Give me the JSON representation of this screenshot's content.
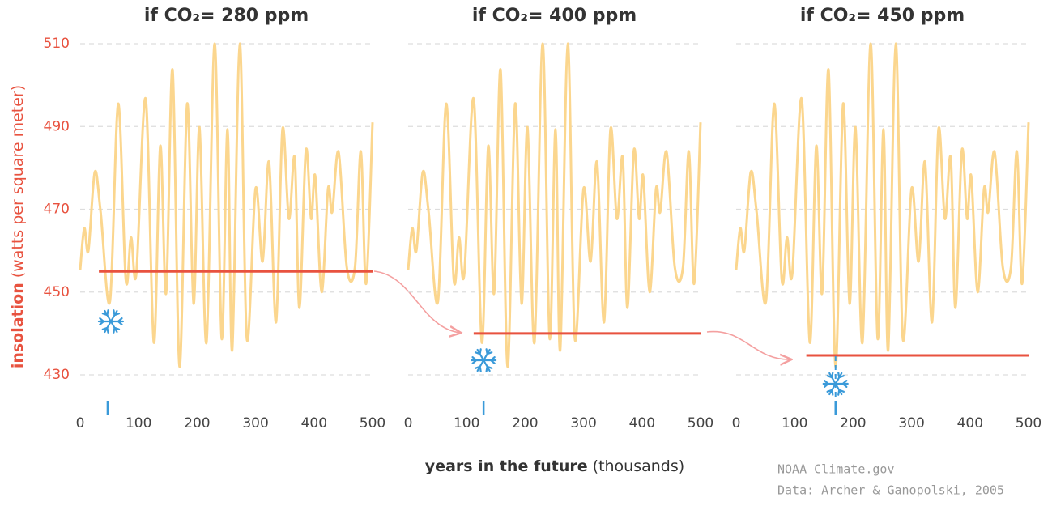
{
  "chart_data": [
    {
      "type": "line",
      "title": "if CO₂= 280 ppm",
      "x": [
        0,
        7,
        14,
        25,
        35,
        51,
        65,
        78,
        87,
        96,
        112,
        126,
        137,
        147,
        158,
        170,
        183,
        194,
        204,
        216,
        230,
        242,
        252,
        260,
        273,
        285,
        300,
        312,
        323,
        335,
        346,
        357,
        367,
        375,
        386,
        395,
        402,
        413,
        424,
        431,
        442,
        456,
        470,
        480,
        489,
        500
      ],
      "values": [
        455.4,
        465.4,
        460,
        479,
        469.3,
        447.8,
        495.5,
        453,
        463.2,
        454.4,
        496.7,
        437.8,
        485.3,
        449.7,
        503.7,
        432,
        495.5,
        447.2,
        489.8,
        437.8,
        510,
        438.8,
        489.3,
        436,
        510,
        438.8,
        475,
        457.4,
        481.4,
        442.7,
        489.3,
        467.7,
        482.4,
        446.2,
        484.2,
        467.7,
        478,
        450,
        475,
        469.3,
        483.8,
        456,
        456,
        484,
        452,
        491
      ],
      "color": "#fbd68e",
      "threshold": {
        "x": [
          32,
          500
        ],
        "values": [
          455,
          455
        ],
        "color": "#e8523f"
      },
      "glaciation_x": 47,
      "xlim": [
        0,
        500
      ],
      "xticks": [
        0,
        100,
        200,
        300,
        400,
        500
      ],
      "ylim": [
        430,
        510
      ],
      "yticks": [
        430,
        450,
        470,
        490,
        510
      ],
      "grid": true
    },
    {
      "type": "line",
      "title": "if CO₂= 400 ppm",
      "x": [
        0,
        7,
        14,
        25,
        35,
        51,
        65,
        78,
        87,
        96,
        112,
        126,
        137,
        147,
        158,
        170,
        183,
        194,
        204,
        216,
        230,
        242,
        252,
        260,
        273,
        285,
        300,
        312,
        323,
        335,
        346,
        357,
        367,
        375,
        386,
        395,
        402,
        413,
        424,
        431,
        442,
        456,
        470,
        480,
        489,
        500
      ],
      "values": [
        455.4,
        465.4,
        460,
        479,
        469.3,
        447.8,
        495.5,
        453,
        463.2,
        454.4,
        496.7,
        437.8,
        485.3,
        449.7,
        503.7,
        432,
        495.5,
        447.2,
        489.8,
        437.8,
        510,
        438.8,
        489.3,
        436,
        510,
        438.8,
        475,
        457.4,
        481.4,
        442.7,
        489.3,
        467.7,
        482.4,
        446.2,
        484.2,
        467.7,
        478,
        450,
        475,
        469.3,
        483.8,
        456,
        456,
        484,
        452,
        491
      ],
      "color": "#fbd68e",
      "threshold": {
        "x": [
          112,
          500
        ],
        "values": [
          440,
          440
        ],
        "color": "#e8523f"
      },
      "glaciation_x": 129,
      "xlim": [
        0,
        500
      ],
      "xticks": [
        0,
        100,
        200,
        300,
        400,
        500
      ],
      "ylim": [
        430,
        510
      ],
      "yticks": [
        430,
        450,
        470,
        490,
        510
      ],
      "grid": true
    },
    {
      "type": "line",
      "title": "if CO₂= 450 ppm",
      "x": [
        0,
        7,
        14,
        25,
        35,
        51,
        65,
        78,
        87,
        96,
        112,
        126,
        137,
        147,
        158,
        170,
        183,
        194,
        204,
        216,
        230,
        242,
        252,
        260,
        273,
        285,
        300,
        312,
        323,
        335,
        346,
        357,
        367,
        375,
        386,
        395,
        402,
        413,
        424,
        431,
        442,
        456,
        470,
        480,
        489,
        500
      ],
      "values": [
        455.4,
        465.4,
        460,
        479,
        469.3,
        447.8,
        495.5,
        453,
        463.2,
        454.4,
        496.7,
        437.8,
        485.3,
        449.7,
        503.7,
        432,
        495.5,
        447.2,
        489.8,
        437.8,
        510,
        438.8,
        489.3,
        436,
        510,
        438.8,
        475,
        457.4,
        481.4,
        442.7,
        489.3,
        467.7,
        482.4,
        446.2,
        484.2,
        467.7,
        478,
        450,
        475,
        469.3,
        483.8,
        456,
        456,
        484,
        452,
        491
      ],
      "color": "#fbd68e",
      "threshold": {
        "x": [
          120,
          500
        ],
        "values": [
          434.7,
          434.7
        ],
        "color": "#e8523f"
      },
      "glaciation_x": 170,
      "xlim": [
        0,
        500
      ],
      "xticks": [
        0,
        100,
        200,
        300,
        400,
        500
      ],
      "ylim": [
        430,
        510
      ],
      "yticks": [
        430,
        450,
        470,
        490,
        510
      ],
      "grid": true
    }
  ],
  "ylabel": [
    "insolation",
    "(watts per square meter)"
  ],
  "xlabel": [
    "years in the future",
    "(thousands)"
  ],
  "credits": [
    "NOAA Climate.gov",
    "Data: Archer & Ganopolski, 2005"
  ]
}
